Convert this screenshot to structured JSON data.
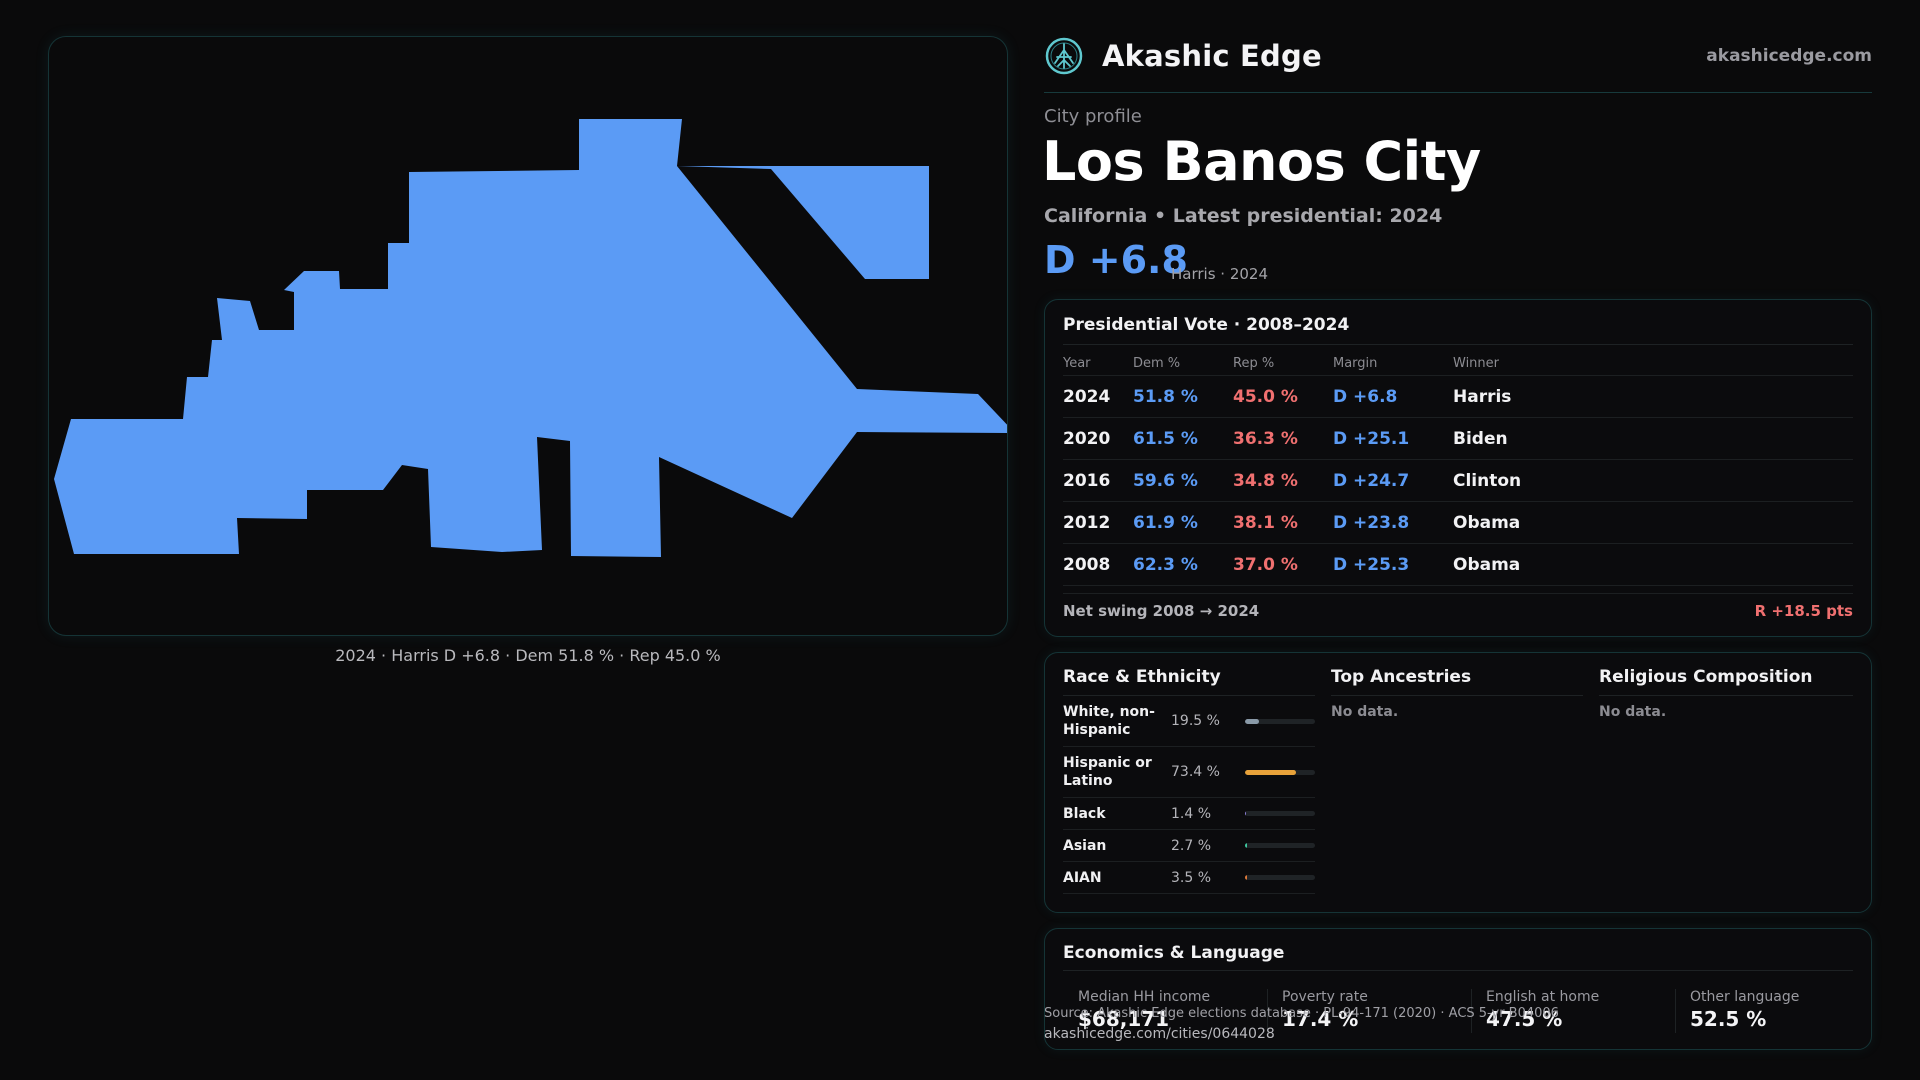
{
  "brand": {
    "name": "Akashic Edge",
    "url": "akashicedge.com"
  },
  "map": {
    "fill_color": "#5b9bf5",
    "caption": "2024 · Harris D +6.8 · Dem 51.8 % · Rep 45.0 %"
  },
  "profile": {
    "kicker": "City profile",
    "city": "Los Banos City",
    "subtitle": "California • Latest presidential: 2024",
    "margin": "D +6.8",
    "margin_note": "Harris · 2024"
  },
  "presidential": {
    "title": "Presidential Vote · 2008–2024",
    "columns": [
      "Year",
      "Dem %",
      "Rep %",
      "Margin",
      "Winner"
    ],
    "rows": [
      {
        "year": "2024",
        "dem": "51.8 %",
        "rep": "45.0 %",
        "margin": "D +6.8",
        "winner": "Harris"
      },
      {
        "year": "2020",
        "dem": "61.5 %",
        "rep": "36.3 %",
        "margin": "D +25.1",
        "winner": "Biden"
      },
      {
        "year": "2016",
        "dem": "59.6 %",
        "rep": "34.8 %",
        "margin": "D +24.7",
        "winner": "Clinton"
      },
      {
        "year": "2012",
        "dem": "61.9 %",
        "rep": "38.1 %",
        "margin": "D +23.8",
        "winner": "Obama"
      },
      {
        "year": "2008",
        "dem": "62.3 %",
        "rep": "37.0 %",
        "margin": "D +25.3",
        "winner": "Obama"
      }
    ],
    "swing_label": "Net swing 2008 → 2024",
    "swing_value": "R +18.5 pts"
  },
  "race": {
    "title": "Race & Ethnicity",
    "rows": [
      {
        "label": "White, non-Hispanic",
        "pct": "19.5 %",
        "value": 19.5,
        "color": "#8a9aa8"
      },
      {
        "label": "Hispanic or Latino",
        "pct": "73.4 %",
        "value": 73.4,
        "color": "#e8a23a"
      },
      {
        "label": "Black",
        "pct": "1.4 %",
        "value": 1.4,
        "color": "#8b7fd6"
      },
      {
        "label": "Asian",
        "pct": "2.7 %",
        "value": 2.7,
        "color": "#3fc8a0"
      },
      {
        "label": "AIAN",
        "pct": "3.5 %",
        "value": 3.5,
        "color": "#e07a3a"
      }
    ]
  },
  "ancestries": {
    "title": "Top Ancestries",
    "empty": "No data."
  },
  "religion": {
    "title": "Religious Composition",
    "empty": "No data."
  },
  "economics": {
    "title": "Economics & Language",
    "stats": [
      {
        "label": "Median HH income",
        "value": "$68,171"
      },
      {
        "label": "Poverty rate",
        "value": "17.4 %"
      },
      {
        "label": "English at home",
        "value": "47.5 %"
      },
      {
        "label": "Other language",
        "value": "52.5 %"
      }
    ]
  },
  "footer": {
    "source": "Source: Akashic Edge elections database · PL-94-171 (2020) · ACS 5-yr B04006",
    "page_url": "akashicedge.com/cities/0644028"
  }
}
